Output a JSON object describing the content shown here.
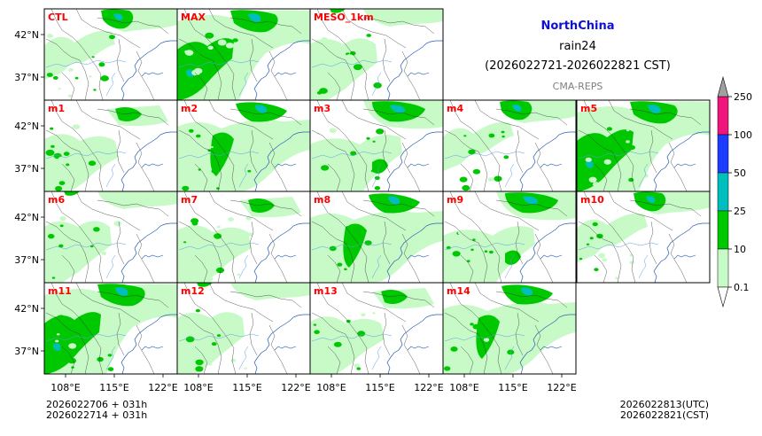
{
  "header": {
    "region": "NorthChina",
    "variable": "rain24",
    "period": "(2026022721-2026022821 CST)",
    "source": "CMA-REPS",
    "region_color": "#1010d0",
    "source_color": "#808080"
  },
  "panels": [
    {
      "label": "CTL"
    },
    {
      "label": "MAX"
    },
    {
      "label": "MESO_1km"
    },
    {
      "label": "m1"
    },
    {
      "label": "m2"
    },
    {
      "label": "m3"
    },
    {
      "label": "m4"
    },
    {
      "label": "m5"
    },
    {
      "label": "m6"
    },
    {
      "label": "m7"
    },
    {
      "label": "m8"
    },
    {
      "label": "m9"
    },
    {
      "label": "m10"
    },
    {
      "label": "m11"
    },
    {
      "label": "m12"
    },
    {
      "label": "m13"
    },
    {
      "label": "m14"
    }
  ],
  "axes": {
    "lat_labels": [
      "42°N",
      "37°N"
    ],
    "lon_labels": [
      "108°E",
      "115°E",
      "122°E"
    ]
  },
  "colorbar": {
    "ticks": [
      "0.1",
      "10",
      "25",
      "50",
      "100",
      "250"
    ],
    "colors": [
      "#c8fac8",
      "#00c800",
      "#00bebe",
      "#1e3cff",
      "#f0147d",
      "#a0a0a0"
    ]
  },
  "footer": {
    "left_line1": "2026022706  +  031h",
    "left_line2": "2026022714  +  031h",
    "right_line1": "2026022813(UTC)",
    "right_line2": "2026022821(CST)"
  }
}
